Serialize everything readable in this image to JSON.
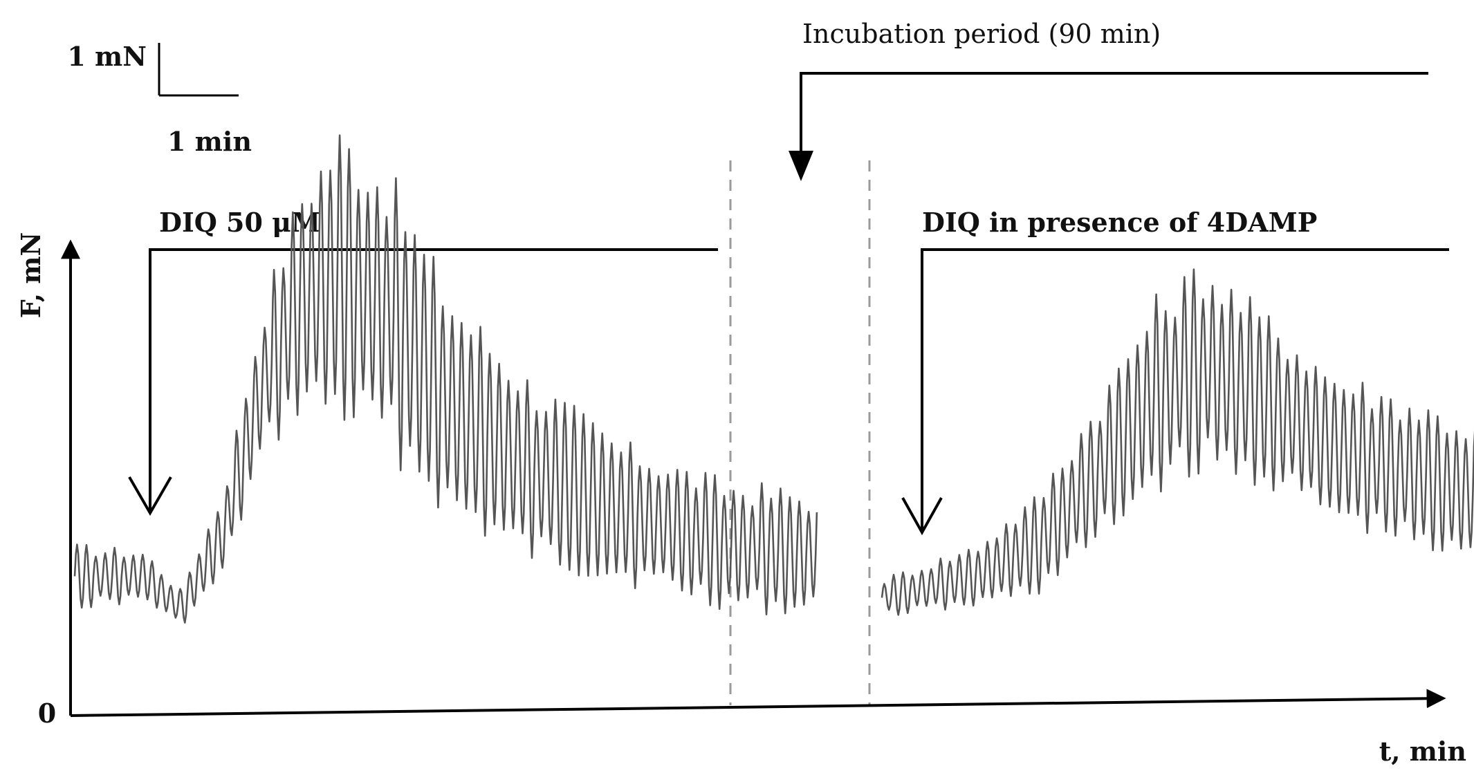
{
  "scale_bar": {
    "force": "1 mN",
    "time": "1 min"
  },
  "incubation": {
    "label": "Incubation period (90 min)"
  },
  "markers": [
    {
      "label": "DIQ 50 μM"
    },
    {
      "label": "DIQ in presence of 4DAMP"
    }
  ],
  "axes": {
    "ylabel": "F, mN",
    "xlabel": "t, min",
    "y_zero": "0"
  },
  "chart_data": {
    "type": "line",
    "title": "",
    "xlabel": "t, min",
    "ylabel": "F, mN",
    "ylim": [
      0,
      6.5
    ],
    "scale_bar": {
      "force_mN": 1,
      "time_min": 1
    },
    "note": "Levels read against the 1 mN scale bar; baseline ~1.3 mN",
    "series": [
      {
        "name": "",
        "duration_min": 9.5,
        "envelope": [
          {
            "t": 0.0,
            "mid": 1.3,
            "amp": 0.25
          },
          {
            "t": 0.9,
            "mid": 1.3,
            "amp": 0.2
          },
          {
            "t": 1.35,
            "mid": 1.0,
            "amp": 0.15
          },
          {
            "t": 1.9,
            "mid": 1.7,
            "amp": 0.35
          },
          {
            "t": 2.4,
            "mid": 3.1,
            "amp": 0.6
          },
          {
            "t": 2.9,
            "mid": 3.9,
            "amp": 0.9
          },
          {
            "t": 3.4,
            "mid": 4.1,
            "amp": 1.2
          },
          {
            "t": 4.0,
            "mid": 3.8,
            "amp": 1.1
          },
          {
            "t": 4.8,
            "mid": 2.9,
            "amp": 0.9
          },
          {
            "t": 5.8,
            "mid": 2.3,
            "amp": 0.75
          },
          {
            "t": 7.0,
            "mid": 1.9,
            "amp": 0.55
          },
          {
            "t": 8.3,
            "mid": 1.6,
            "amp": 0.5
          },
          {
            "t": 9.5,
            "mid": 1.5,
            "amp": 0.5
          }
        ]
      },
      {
        "name": "",
        "duration_min": 8.2,
        "envelope": [
          {
            "t": 0.0,
            "mid": 1.1,
            "amp": 0.15
          },
          {
            "t": 1.2,
            "mid": 1.3,
            "amp": 0.25
          },
          {
            "t": 2.0,
            "mid": 1.6,
            "amp": 0.4
          },
          {
            "t": 2.8,
            "mid": 2.3,
            "amp": 0.6
          },
          {
            "t": 3.5,
            "mid": 3.0,
            "amp": 0.75
          },
          {
            "t": 4.1,
            "mid": 3.25,
            "amp": 0.85
          },
          {
            "t": 4.8,
            "mid": 3.0,
            "amp": 0.7
          },
          {
            "t": 5.8,
            "mid": 2.5,
            "amp": 0.6
          },
          {
            "t": 7.0,
            "mid": 2.2,
            "amp": 0.6
          },
          {
            "t": 8.2,
            "mid": 1.9,
            "amp": 0.55
          }
        ]
      }
    ]
  }
}
